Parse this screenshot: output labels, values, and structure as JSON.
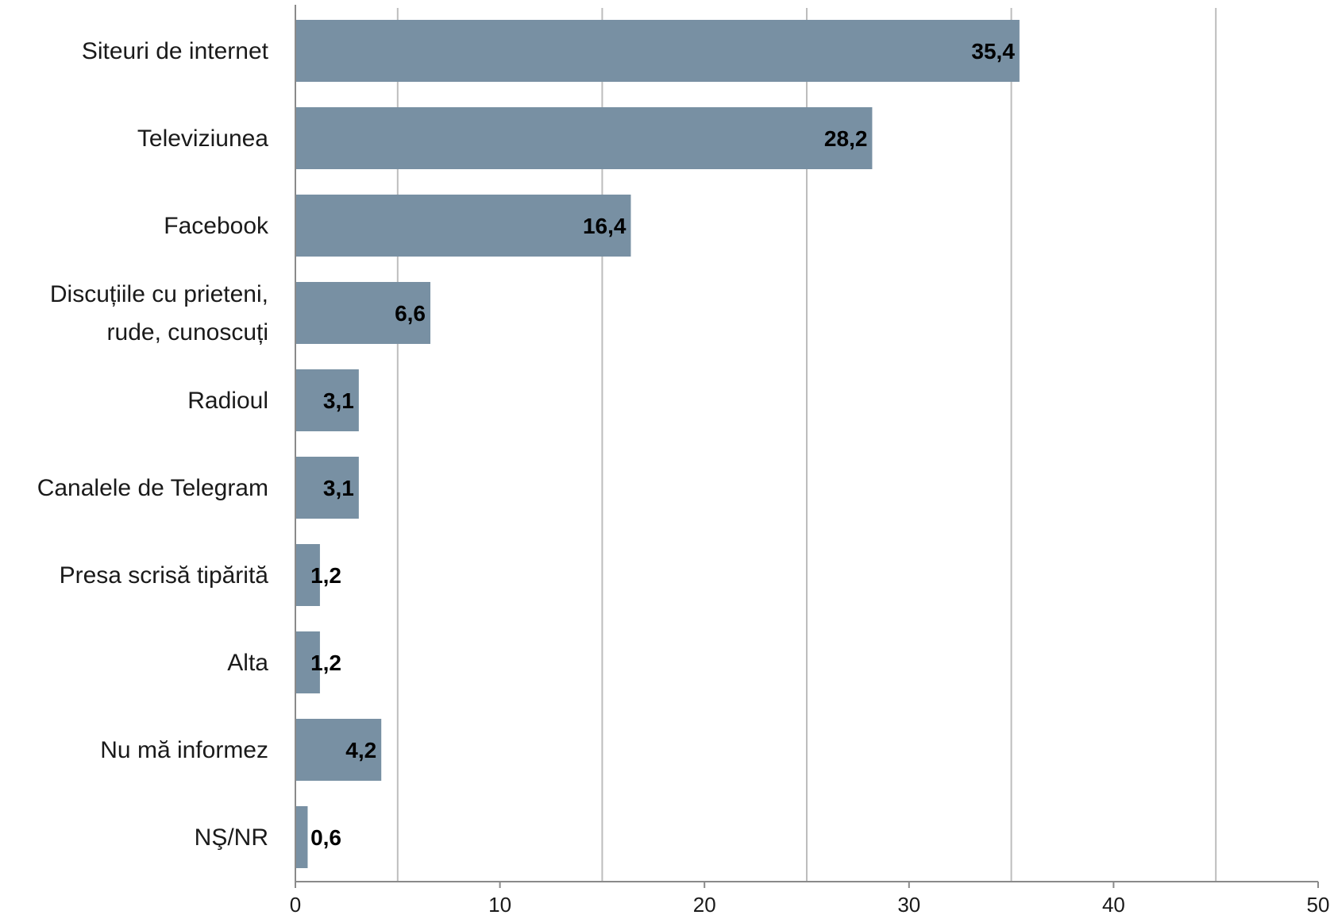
{
  "chart_data": {
    "type": "bar",
    "orientation": "horizontal",
    "categories": [
      [
        "Siteuri de internet"
      ],
      [
        "Televiziunea"
      ],
      [
        "Facebook"
      ],
      [
        "Discuțiile cu prieteni,",
        "rude, cunoscuți"
      ],
      [
        "Radioul"
      ],
      [
        "Canalele de Telegram"
      ],
      [
        "Presa scrisă tipărită"
      ],
      [
        "Alta"
      ],
      [
        "Nu mă informez"
      ],
      [
        "NŞ/NR"
      ]
    ],
    "values": [
      35.4,
      28.2,
      16.4,
      6.6,
      3.1,
      3.1,
      1.2,
      1.2,
      4.2,
      0.6
    ],
    "value_labels": [
      "35,4",
      "28,2",
      "16,4",
      "6,6",
      "3,1",
      "3,1",
      "1,2",
      "1,2",
      "4,2",
      "0,6"
    ],
    "xlim": [
      0,
      50
    ],
    "x_ticks": [
      0,
      10,
      20,
      30,
      40,
      50
    ],
    "x_tick_labels": [
      "0",
      "10",
      "20",
      "30",
      "40",
      "50"
    ],
    "gridlines": [
      5,
      15,
      25,
      35,
      45
    ],
    "grid": true,
    "legend": false,
    "bar_color": "#7890a3",
    "grid_color": "#bdbdbd"
  }
}
